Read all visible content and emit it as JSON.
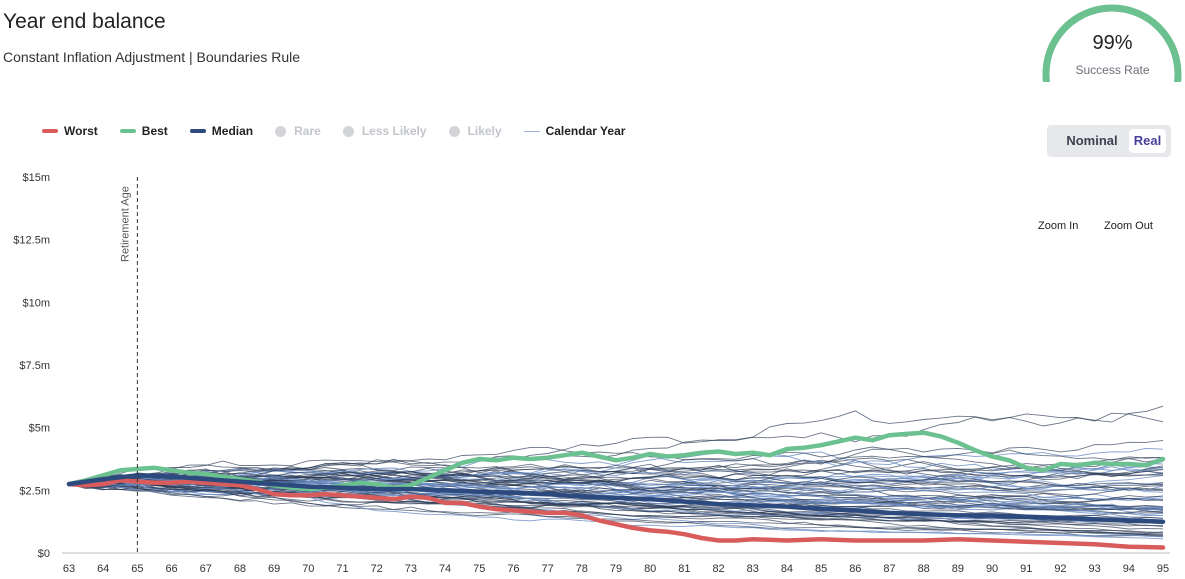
{
  "header": {
    "title": "Year end balance",
    "subtitle": "Constant Inflation Adjustment | Boundaries Rule"
  },
  "gauge": {
    "percent_text": "99%",
    "label": "Success Rate",
    "value": 0.99,
    "color": "#6cc190"
  },
  "legend": [
    {
      "label": "Worst",
      "color": "#d95c5c",
      "style": "line",
      "enabled": true
    },
    {
      "label": "Best",
      "color": "#6cc190",
      "style": "line",
      "enabled": true
    },
    {
      "label": "Median",
      "color": "#2c4a7e",
      "style": "line",
      "enabled": true
    },
    {
      "label": "Rare",
      "color": "#d2d4d8",
      "style": "dot",
      "enabled": false
    },
    {
      "label": "Less Likely",
      "color": "#d2d4d8",
      "style": "dot",
      "enabled": false
    },
    {
      "label": "Likely",
      "color": "#d2d4d8",
      "style": "dot",
      "enabled": false
    },
    {
      "label": "Calendar Year",
      "color": "#9ab0d6",
      "style": "thin",
      "enabled": true
    }
  ],
  "toggle": {
    "nominal": "Nominal",
    "real": "Real",
    "selected": "Real"
  },
  "zoom": {
    "in": "Zoom In",
    "out": "Zoom Out"
  },
  "colors": {
    "worst": "#d95c5c",
    "best": "#6cc190",
    "median": "#2c4a7e",
    "path_dark": "#2b3a55",
    "path_light": "#6a8cc6",
    "axis": "#999999"
  },
  "chart_data": {
    "type": "line",
    "xlabel": "",
    "ylabel": "",
    "x_ticks": [
      63,
      64,
      65,
      66,
      67,
      68,
      69,
      70,
      71,
      72,
      73,
      74,
      75,
      76,
      77,
      78,
      79,
      80,
      81,
      82,
      83,
      84,
      85,
      86,
      87,
      88,
      89,
      90,
      91,
      92,
      93,
      94,
      95
    ],
    "y_ticks": [
      {
        "value": 0,
        "label": "$0"
      },
      {
        "value": 2.5,
        "label": "$2.5m"
      },
      {
        "value": 5,
        "label": "$5m"
      },
      {
        "value": 7.5,
        "label": "$7.5m"
      },
      {
        "value": 10,
        "label": "$10m"
      },
      {
        "value": 12.5,
        "label": "$12.5m"
      },
      {
        "value": 15,
        "label": "$15m"
      }
    ],
    "xlim": [
      63,
      95
    ],
    "ylim": [
      0,
      15
    ],
    "retirement_age": {
      "x": 65,
      "label": "Retirement Age"
    },
    "highlight_series": [
      {
        "name": "Worst",
        "color": "#d95c5c",
        "x": [
          63,
          63.5,
          64,
          64.5,
          65,
          65.5,
          66,
          66.5,
          67,
          67.5,
          68,
          68.5,
          69,
          69.5,
          70,
          70.5,
          71,
          71.5,
          72,
          72.5,
          73,
          73.5,
          74,
          74.5,
          75,
          75.5,
          76,
          76.5,
          77,
          77.5,
          78,
          78.5,
          79,
          79.5,
          80,
          80.5,
          81,
          81.5,
          82,
          82.5,
          83,
          84,
          85,
          86,
          87,
          88,
          89,
          90,
          91,
          92,
          93,
          94,
          95
        ],
        "y": [
          2.75,
          2.7,
          2.75,
          2.9,
          2.85,
          2.8,
          2.8,
          2.85,
          2.8,
          2.75,
          2.7,
          2.55,
          2.35,
          2.3,
          2.3,
          2.35,
          2.3,
          2.25,
          2.2,
          2.15,
          2.25,
          2.2,
          2.0,
          2.0,
          1.85,
          1.75,
          1.7,
          1.65,
          1.6,
          1.6,
          1.5,
          1.3,
          1.15,
          1.0,
          0.9,
          0.85,
          0.75,
          0.6,
          0.5,
          0.5,
          0.55,
          0.5,
          0.55,
          0.5,
          0.5,
          0.5,
          0.55,
          0.5,
          0.45,
          0.4,
          0.35,
          0.25,
          0.22
        ]
      },
      {
        "name": "Best",
        "color": "#6cc190",
        "x": [
          63,
          63.5,
          64,
          64.5,
          65,
          65.5,
          66,
          66.5,
          67,
          67.5,
          68,
          68.5,
          69,
          69.5,
          70,
          70.5,
          71,
          71.5,
          72,
          72.5,
          73,
          73.5,
          74,
          74.5,
          75,
          75.5,
          76,
          76.5,
          77,
          77.5,
          78,
          78.5,
          79,
          79.5,
          80,
          80.5,
          81,
          81.5,
          82,
          82.5,
          83,
          83.5,
          84,
          84.5,
          85,
          85.5,
          86,
          86.5,
          87,
          87.5,
          88,
          88.5,
          89,
          89.5,
          90,
          90.5,
          91,
          91.5,
          92,
          92.5,
          93,
          93.5,
          94,
          94.5,
          95
        ],
        "y": [
          2.75,
          2.9,
          3.1,
          3.3,
          3.35,
          3.4,
          3.3,
          3.2,
          3.15,
          3.05,
          2.95,
          2.85,
          2.7,
          2.6,
          2.55,
          2.6,
          2.7,
          2.8,
          2.75,
          2.6,
          2.7,
          3.0,
          3.3,
          3.6,
          3.75,
          3.7,
          3.8,
          3.75,
          3.8,
          3.9,
          4.0,
          3.85,
          3.7,
          3.8,
          3.95,
          3.85,
          3.9,
          4.0,
          4.05,
          3.95,
          4.0,
          3.9,
          4.15,
          4.2,
          4.3,
          4.45,
          4.6,
          4.5,
          4.7,
          4.75,
          4.8,
          4.65,
          4.4,
          4.1,
          3.85,
          3.7,
          3.4,
          3.3,
          3.55,
          3.5,
          3.6,
          3.55,
          3.55,
          3.5,
          3.75
        ]
      },
      {
        "name": "Median",
        "color": "#2c4a7e",
        "x": [
          63,
          64,
          65,
          66,
          67,
          68,
          69,
          70,
          71,
          72,
          73,
          74,
          75,
          76,
          77,
          78,
          79,
          80,
          81,
          82,
          83,
          84,
          85,
          86,
          87,
          88,
          89,
          90,
          91,
          92,
          93,
          94,
          95
        ],
        "y": [
          2.75,
          2.95,
          3.1,
          3.05,
          2.95,
          2.85,
          2.75,
          2.65,
          2.6,
          2.55,
          2.55,
          2.5,
          2.45,
          2.4,
          2.35,
          2.25,
          2.2,
          2.15,
          2.05,
          1.95,
          1.9,
          1.85,
          1.75,
          1.7,
          1.6,
          1.55,
          1.5,
          1.5,
          1.45,
          1.4,
          1.35,
          1.3,
          1.25
        ]
      }
    ]
  }
}
